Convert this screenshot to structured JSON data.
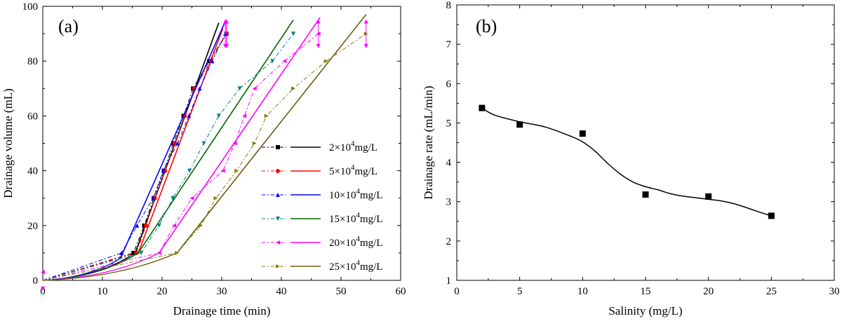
{
  "chart_data": [
    {
      "type": "line",
      "panel_label": "(a)",
      "xlabel": "Drainage time (min)",
      "ylabel": "Drainage volume (mL)",
      "xlim": [
        0,
        60
      ],
      "ylim": [
        0,
        100
      ],
      "xticks": [
        "0",
        "10",
        "20",
        "30",
        "40",
        "50",
        "60"
      ],
      "yticks": [
        "0",
        "20",
        "40",
        "60",
        "80",
        "100"
      ],
      "legend_position": "center-right",
      "series": [
        {
          "name": "2×10⁴mg/L",
          "legend_base": "2×10",
          "legend_exp": "4",
          "legend_unit": "mg/L",
          "color": "#000000",
          "marker": "square",
          "measured": [
            [
              0,
              0
            ],
            [
              15.2,
              10
            ],
            [
              17,
              20
            ],
            [
              18.6,
              30
            ],
            [
              20.3,
              40
            ],
            [
              21.9,
              50
            ],
            [
              23.6,
              60
            ],
            [
              25.2,
              70
            ],
            [
              27.9,
              80
            ],
            [
              30.8,
              90
            ]
          ],
          "fit": [
            [
              15.5,
              10
            ],
            [
              29.5,
              94
            ]
          ],
          "initial_curve": [
            [
              0,
              0
            ],
            [
              15.5,
              10
            ]
          ],
          "errorbar": {
            "x": 30.8,
            "y": 90,
            "err": 4
          }
        },
        {
          "name": "5×10⁴mg/L",
          "legend_base": "5×10",
          "legend_exp": "4",
          "legend_unit": "mg/L",
          "color": "#ff0000",
          "marker": "circle",
          "measured": [
            [
              0,
              0
            ],
            [
              15.7,
              10
            ],
            [
              17.3,
              20
            ],
            [
              18.8,
              30
            ],
            [
              20.5,
              40
            ],
            [
              22.1,
              50
            ],
            [
              23.8,
              60
            ],
            [
              25.4,
              70
            ],
            [
              28.2,
              80
            ],
            [
              30.8,
              90
            ]
          ],
          "fit": [
            [
              16,
              10
            ],
            [
              30.2,
              92
            ]
          ],
          "initial_curve": [
            [
              0,
              0
            ],
            [
              16,
              10
            ]
          ],
          "errorbar": {
            "x": 30.8,
            "y": 90,
            "err": 4
          }
        },
        {
          "name": "10×10⁴mg/L",
          "legend_base": "10×10",
          "legend_exp": "4",
          "legend_unit": "mg/L",
          "color": "#0000ff",
          "marker": "triangle-up",
          "measured": [
            [
              0,
              0
            ],
            [
              13.2,
              10
            ],
            [
              15.8,
              20
            ],
            [
              18.5,
              30
            ],
            [
              20.2,
              40
            ],
            [
              22.6,
              50
            ],
            [
              24.5,
              60
            ],
            [
              26.3,
              70
            ],
            [
              28.4,
              80
            ],
            [
              30.6,
              90
            ]
          ],
          "fit": [
            [
              13,
              8
            ],
            [
              30.5,
              94
            ]
          ],
          "initial_curve": [
            [
              0,
              0
            ],
            [
              13,
              8
            ]
          ],
          "errorbar": {
            "x": 30.6,
            "y": 90,
            "err": 4
          }
        },
        {
          "name": "15×10⁴mg/L",
          "legend_base": "15×10",
          "legend_exp": "4",
          "legend_unit": "mg/L",
          "color": "#008080",
          "fit_color": "#006400",
          "marker": "triangle-down",
          "measured": [
            [
              0,
              0
            ],
            [
              16.5,
              10
            ],
            [
              19.5,
              20
            ],
            [
              21.8,
              30
            ],
            [
              24.6,
              40
            ],
            [
              27,
              50
            ],
            [
              29.5,
              60
            ],
            [
              33,
              70
            ],
            [
              38.5,
              80
            ],
            [
              42,
              90
            ]
          ],
          "fit": [
            [
              16,
              10
            ],
            [
              42,
              95
            ]
          ],
          "initial_curve": [
            [
              0,
              0
            ],
            [
              16,
              10
            ]
          ],
          "errorbar": null
        },
        {
          "name": "20×10⁴mg/L",
          "legend_base": "20×10",
          "legend_exp": "4",
          "legend_unit": "mg/L",
          "color": "#ff00ff",
          "marker": "triangle-left",
          "measured": [
            [
              0,
              0
            ],
            [
              19.5,
              10
            ],
            [
              22,
              20
            ],
            [
              25,
              30
            ],
            [
              30.2,
              40
            ],
            [
              32.2,
              50
            ],
            [
              33.8,
              60
            ],
            [
              35.5,
              70
            ],
            [
              40.5,
              80
            ],
            [
              46.2,
              90
            ]
          ],
          "fit": [
            [
              19.5,
              10
            ],
            [
              46.5,
              96
            ]
          ],
          "initial_curve": [
            [
              0,
              0
            ],
            [
              19.5,
              10
            ]
          ],
          "errorbar": {
            "x": 46.2,
            "y": 90,
            "err": 4
          }
        },
        {
          "name": "25×10⁴mg/L",
          "legend_base": "25×10",
          "legend_exp": "4",
          "legend_unit": "mg/L",
          "color": "#808000",
          "fit_color": "#6b5a10",
          "marker": "triangle-right",
          "measured": [
            [
              0,
              0
            ],
            [
              22.5,
              10
            ],
            [
              26.5,
              20
            ],
            [
              29,
              30
            ],
            [
              32.5,
              40
            ],
            [
              35.5,
              50
            ],
            [
              37.5,
              60
            ],
            [
              42,
              70
            ],
            [
              47.5,
              80
            ],
            [
              54.2,
              90
            ]
          ],
          "fit": [
            [
              22.5,
              10
            ],
            [
              54.2,
              97
            ]
          ],
          "initial_curve": [
            [
              0,
              0
            ],
            [
              22.5,
              10
            ]
          ],
          "errorbar": {
            "x": 54.2,
            "y": 90,
            "err": 4
          }
        }
      ]
    },
    {
      "type": "scatter",
      "panel_label": "(b)",
      "xlabel": "Salinity (mg/L)",
      "ylabel": "Drainage rate (mL/min)",
      "xlim": [
        0,
        30
      ],
      "ylim": [
        1,
        8
      ],
      "xticks": [
        "0",
        "5",
        "10",
        "15",
        "20",
        "25",
        "30"
      ],
      "yticks": [
        "1",
        "2",
        "3",
        "4",
        "5",
        "6",
        "7",
        "8"
      ],
      "color": "#000000",
      "marker": "square",
      "x": [
        2,
        5,
        10,
        15,
        20,
        25
      ],
      "y": [
        5.38,
        4.96,
        4.73,
        3.18,
        3.13,
        2.64
      ],
      "smooth_fit": [
        [
          2,
          5.38
        ],
        [
          3,
          5.2
        ],
        [
          5,
          5.03
        ],
        [
          7,
          4.9
        ],
        [
          9,
          4.67
        ],
        [
          10,
          4.52
        ],
        [
          11,
          4.28
        ],
        [
          12,
          3.97
        ],
        [
          13,
          3.7
        ],
        [
          14,
          3.5
        ],
        [
          15,
          3.38
        ],
        [
          16,
          3.3
        ],
        [
          17,
          3.2
        ],
        [
          18,
          3.14
        ],
        [
          19,
          3.1
        ],
        [
          20,
          3.06
        ],
        [
          21,
          3.02
        ],
        [
          22,
          2.95
        ],
        [
          23,
          2.85
        ],
        [
          24,
          2.74
        ],
        [
          25,
          2.64
        ]
      ]
    }
  ]
}
